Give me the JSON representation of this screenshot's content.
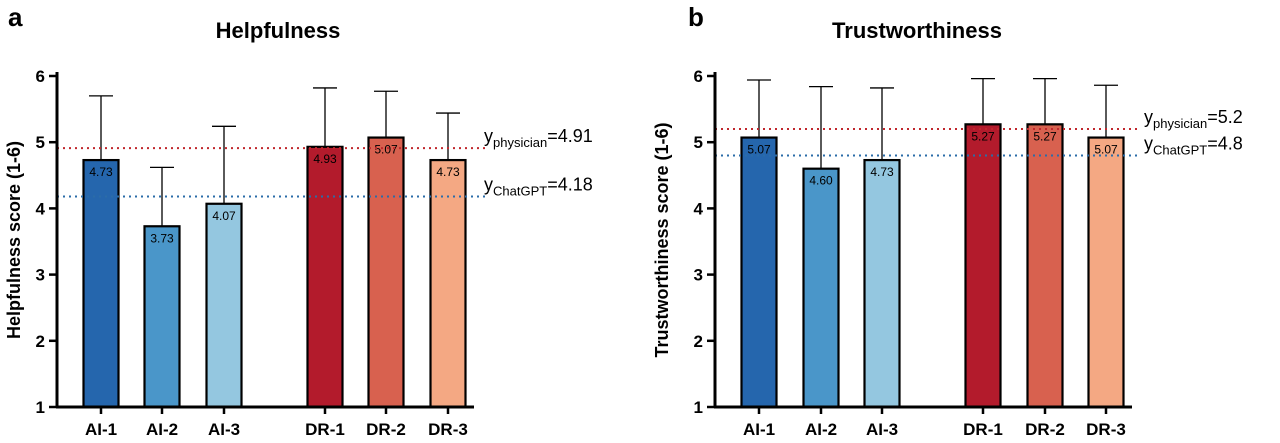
{
  "figure": {
    "panels": [
      "a",
      "b"
    ]
  },
  "chart_data": [
    {
      "type": "bar",
      "panel_label": "a",
      "title": "Helpfulness",
      "xlabel": "",
      "ylabel": "Helpfulness score (1-6)",
      "ylim": [
        1,
        6
      ],
      "yticks": [
        "1",
        "2",
        "3",
        "4",
        "5",
        "6"
      ],
      "grid": false,
      "categories": [
        "AI-1",
        "AI-2",
        "AI-3",
        "DR-1",
        "DR-2",
        "DR-3"
      ],
      "values": [
        4.73,
        3.73,
        4.07,
        4.93,
        5.07,
        4.73
      ],
      "value_labels": [
        "4.73",
        "3.73",
        "4.07",
        "4.93",
        "5.07",
        "4.73"
      ],
      "error_upper": [
        5.7,
        4.62,
        5.24,
        5.82,
        5.77,
        5.44
      ],
      "colors": [
        "#2566ad",
        "#4a96c9",
        "#94c7e0",
        "#b31b2c",
        "#d8614f",
        "#f4a883"
      ],
      "reference_lines": [
        {
          "base": "y",
          "subscript": "physician",
          "suffix": "=4.91",
          "value": 4.91,
          "color": "#c0272d"
        },
        {
          "base": "y",
          "subscript": "ChatGPT",
          "suffix": "=4.18",
          "value": 4.18,
          "color": "#2b6ca8"
        }
      ]
    },
    {
      "type": "bar",
      "panel_label": "b",
      "title": "Trustworthiness",
      "xlabel": "",
      "ylabel": "Trustworthiness score (1-6)",
      "ylim": [
        1,
        6
      ],
      "yticks": [
        "1",
        "2",
        "3",
        "4",
        "5",
        "6"
      ],
      "grid": false,
      "categories": [
        "AI-1",
        "AI-2",
        "AI-3",
        "DR-1",
        "DR-2",
        "DR-3"
      ],
      "values": [
        5.07,
        4.6,
        4.73,
        5.27,
        5.27,
        5.07
      ],
      "value_labels": [
        "5.07",
        "4.60",
        "4.73",
        "5.27",
        "5.27",
        "5.07"
      ],
      "error_upper": [
        5.94,
        5.84,
        5.82,
        5.96,
        5.96,
        5.86
      ],
      "colors": [
        "#2566ad",
        "#4a96c9",
        "#94c7e0",
        "#b31b2c",
        "#d8614f",
        "#f4a883"
      ],
      "reference_lines": [
        {
          "base": "y",
          "subscript": "physician",
          "suffix": "=5.2",
          "value": 5.2,
          "color": "#c0272d"
        },
        {
          "base": "y",
          "subscript": "ChatGPT",
          "suffix": "=4.8",
          "value": 4.8,
          "color": "#2b6ca8"
        }
      ]
    }
  ]
}
